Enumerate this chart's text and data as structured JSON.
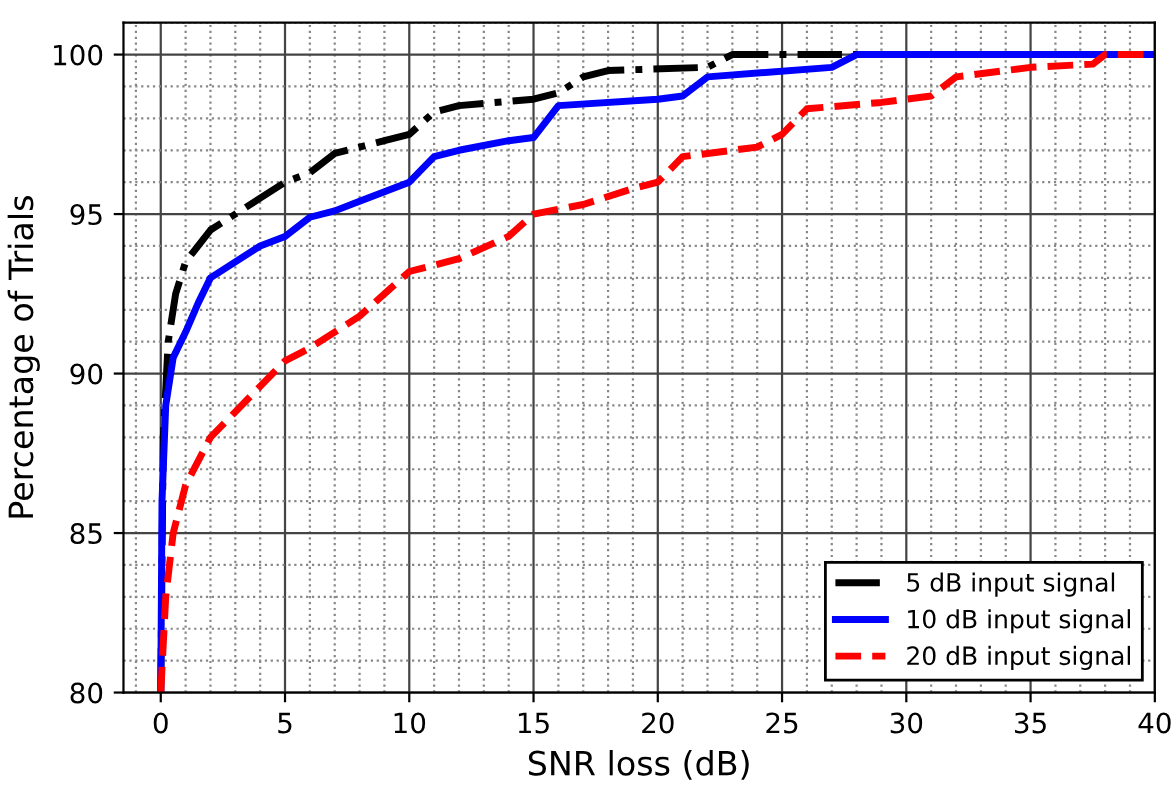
{
  "chart_data": {
    "type": "line",
    "xlabel": "SNR loss (dB)",
    "ylabel": "Percentage of Trials",
    "xlim": [
      -1.5,
      40
    ],
    "ylim": [
      80,
      101
    ],
    "xticks": [
      0,
      5,
      10,
      15,
      20,
      25,
      30,
      35,
      40
    ],
    "yticks": [
      80,
      85,
      90,
      95,
      100
    ],
    "grid": true,
    "legend": "bottom right",
    "marker": "none",
    "series": [
      {
        "name": "5 dB input signal",
        "color": "#000000",
        "line_style": "dashdot",
        "x": [
          0,
          0.1,
          0.3,
          0.6,
          1,
          2,
          3,
          4,
          5,
          6,
          7,
          8,
          9,
          10,
          11,
          12,
          15,
          16,
          17,
          18,
          22,
          23,
          40
        ],
        "values": [
          80,
          88,
          91,
          92.5,
          93.5,
          94.5,
          95,
          95.5,
          96,
          96.3,
          96.9,
          97.1,
          97.3,
          97.5,
          98.2,
          98.4,
          98.6,
          98.8,
          99.3,
          99.5,
          99.6,
          100,
          100
        ]
      },
      {
        "name": "10 dB input signal",
        "color": "#0000ff",
        "line_style": "solid",
        "x": [
          0,
          0.05,
          0.2,
          0.5,
          1,
          1.5,
          2,
          3,
          4,
          5,
          6,
          7,
          8,
          9,
          10,
          11,
          12,
          14,
          15,
          16,
          20,
          21,
          22,
          27,
          28,
          40
        ],
        "values": [
          80,
          86,
          89,
          90.5,
          91.3,
          92.2,
          93,
          93.5,
          94,
          94.3,
          94.9,
          95.1,
          95.4,
          95.7,
          96,
          96.8,
          97,
          97.3,
          97.4,
          98.4,
          98.6,
          98.7,
          99.3,
          99.6,
          100,
          100
        ]
      },
      {
        "name": "20 dB input signal",
        "color": "#ff0000",
        "line_style": "dashed",
        "x": [
          0,
          0.2,
          0.5,
          1,
          2,
          3,
          4,
          5,
          6,
          7,
          8,
          9,
          10,
          12,
          14,
          15,
          17,
          19,
          20,
          21,
          24,
          25,
          26,
          29,
          31,
          32,
          35,
          37.5,
          38,
          40
        ],
        "values": [
          80,
          83,
          85,
          86.5,
          88,
          88.8,
          89.6,
          90.4,
          90.8,
          91.3,
          91.8,
          92.5,
          93.2,
          93.6,
          94.3,
          95,
          95.3,
          95.8,
          96,
          96.8,
          97.1,
          97.5,
          98.3,
          98.5,
          98.7,
          99.3,
          99.6,
          99.7,
          100,
          100
        ]
      }
    ]
  }
}
